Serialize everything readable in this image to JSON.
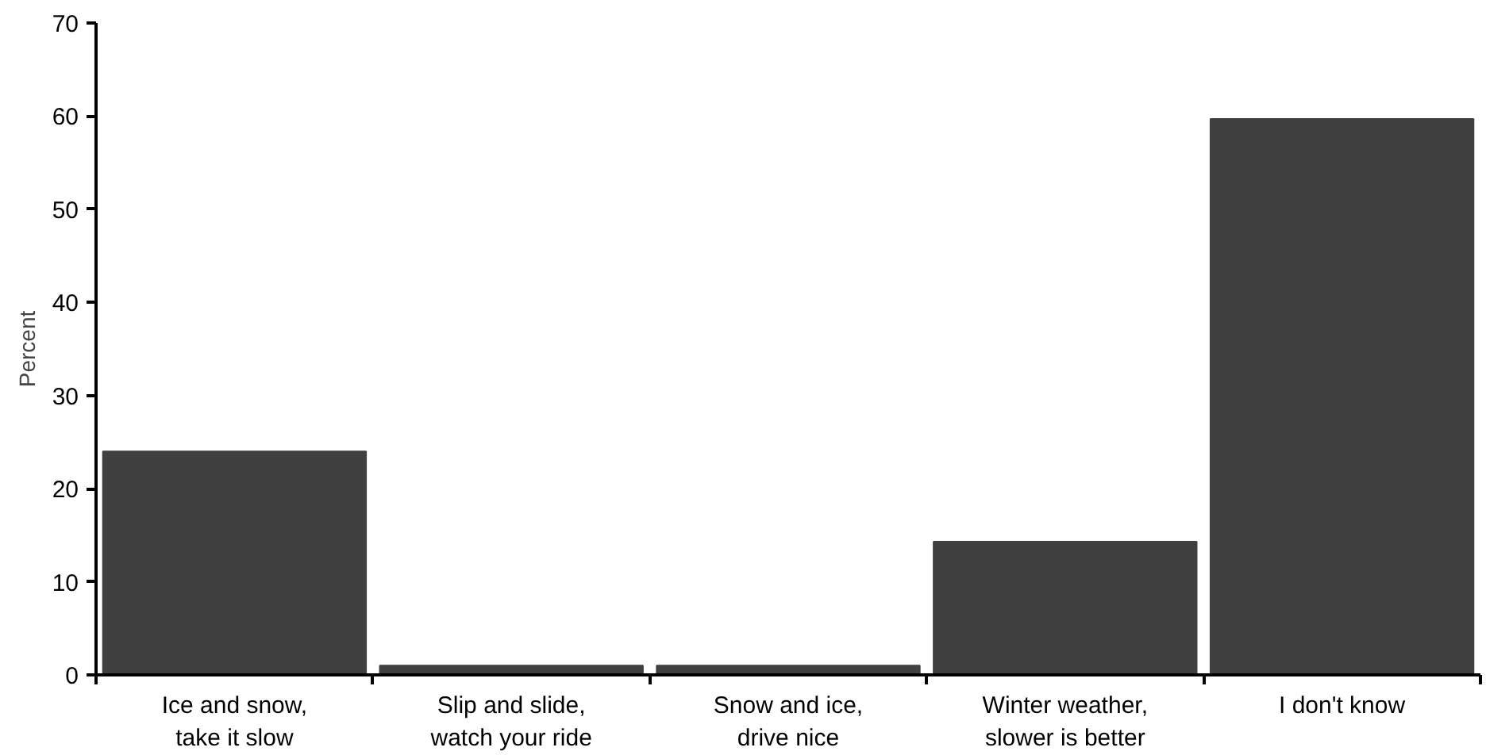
{
  "chart_data": {
    "type": "bar",
    "ylabel": "Percent",
    "categories": [
      "Ice and snow,\ntake it slow",
      "Slip and slide,\nwatch your ride",
      "Snow and ice,\ndrive nice",
      "Winter weather,\nslower is better",
      "I don't know"
    ],
    "values": [
      24,
      1,
      1,
      14.3,
      59.7
    ],
    "color": "#404040",
    "ylim": [
      0,
      70
    ],
    "yticks": [
      0,
      10,
      20,
      30,
      40,
      50,
      60,
      70
    ],
    "grid": false
  }
}
